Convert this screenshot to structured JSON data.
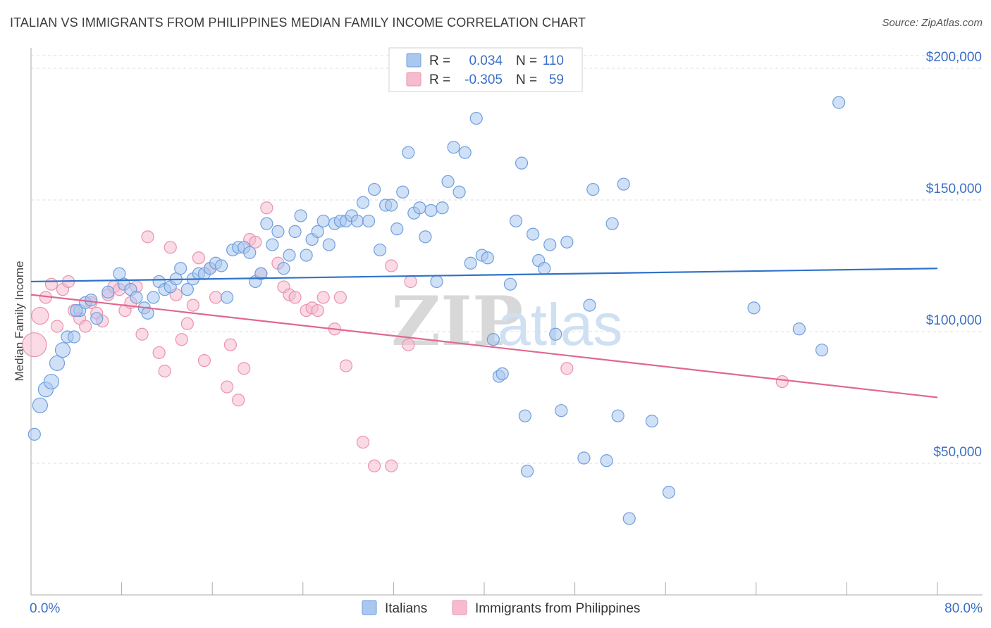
{
  "title": "ITALIAN VS IMMIGRANTS FROM PHILIPPINES MEDIAN FAMILY INCOME CORRELATION CHART",
  "source": "Source: ZipAtlas.com",
  "watermark": {
    "part1": "ZIP",
    "part2": "atlas"
  },
  "colors": {
    "italians_fill": "#a9c7ef",
    "italians_stroke": "#6f9fdc",
    "italians_line": "#2f72c9",
    "phil_fill": "#f6bccd",
    "phil_stroke": "#ea93ae",
    "phil_line": "#e0688f",
    "tick_text": "#3b6fc7",
    "grid": "#dcdcdc"
  },
  "legend": {
    "rows": [
      {
        "r_label": "R =",
        "r_value": "0.034",
        "n_label": "N =",
        "n_value": "110",
        "color_key": "italians"
      },
      {
        "r_label": "R =",
        "r_value": "-0.305",
        "n_label": "N =",
        "n_value": "59",
        "color_key": "phil"
      }
    ]
  },
  "bottom_legend": [
    "Italians",
    "Immigrants from Philippines"
  ],
  "chart_data": {
    "type": "scatter",
    "title": "ITALIAN VS IMMIGRANTS FROM PHILIPPINES MEDIAN FAMILY INCOME CORRELATION CHART",
    "xlabel": "",
    "ylabel": "Median Family Income",
    "xlim": [
      0,
      80
    ],
    "ylim": [
      0,
      210000
    ],
    "x_tick_labels": [
      {
        "value": 0,
        "label": "0.0%"
      },
      {
        "value": 80,
        "label": "80.0%"
      }
    ],
    "y_ticks": [
      {
        "value": 50000,
        "label": "$50,000"
      },
      {
        "value": 100000,
        "label": "$100,000"
      },
      {
        "value": 150000,
        "label": "$150,000"
      },
      {
        "value": 200000,
        "label": "$200,000"
      }
    ],
    "series": [
      {
        "name": "Italians",
        "r": 0.034,
        "n": 110,
        "trend": {
          "x0": 0,
          "y0": 119000,
          "x1": 80,
          "y1": 124000
        },
        "points": [
          [
            0.3,
            61000
          ],
          [
            0.8,
            72000
          ],
          [
            1.3,
            78000
          ],
          [
            1.8,
            81000
          ],
          [
            2.3,
            88000
          ],
          [
            2.8,
            93000
          ],
          [
            3.2,
            98000
          ],
          [
            3.8,
            98000
          ],
          [
            4.3,
            108000
          ],
          [
            4.8,
            111000
          ],
          [
            5.3,
            112000
          ],
          [
            5.8,
            105000
          ],
          [
            6.8,
            115000
          ],
          [
            7.8,
            122000
          ],
          [
            8.2,
            118000
          ],
          [
            8.8,
            116000
          ],
          [
            9.3,
            113000
          ],
          [
            10.0,
            109000
          ],
          [
            10.3,
            107000
          ],
          [
            10.8,
            113000
          ],
          [
            11.3,
            119000
          ],
          [
            11.8,
            116000
          ],
          [
            12.3,
            117000
          ],
          [
            12.8,
            120000
          ],
          [
            13.2,
            124000
          ],
          [
            13.8,
            116000
          ],
          [
            14.3,
            120000
          ],
          [
            14.8,
            122000
          ],
          [
            15.3,
            122000
          ],
          [
            15.8,
            124000
          ],
          [
            16.3,
            126000
          ],
          [
            16.8,
            125000
          ],
          [
            17.3,
            113000
          ],
          [
            17.8,
            131000
          ],
          [
            18.3,
            132000
          ],
          [
            18.8,
            132000
          ],
          [
            19.3,
            130000
          ],
          [
            19.8,
            119000
          ],
          [
            20.3,
            122000
          ],
          [
            20.8,
            141000
          ],
          [
            21.3,
            133000
          ],
          [
            21.8,
            138000
          ],
          [
            22.3,
            124000
          ],
          [
            22.8,
            129000
          ],
          [
            23.3,
            138000
          ],
          [
            23.8,
            144000
          ],
          [
            24.3,
            129000
          ],
          [
            24.8,
            135000
          ],
          [
            25.3,
            138000
          ],
          [
            25.8,
            142000
          ],
          [
            26.3,
            133000
          ],
          [
            26.8,
            141000
          ],
          [
            27.3,
            142000
          ],
          [
            27.8,
            142000
          ],
          [
            28.3,
            144000
          ],
          [
            28.8,
            142000
          ],
          [
            29.3,
            149000
          ],
          [
            29.8,
            142000
          ],
          [
            30.3,
            154000
          ],
          [
            30.8,
            131000
          ],
          [
            31.3,
            148000
          ],
          [
            31.8,
            148000
          ],
          [
            32.3,
            139000
          ],
          [
            32.8,
            153000
          ],
          [
            33.3,
            168000
          ],
          [
            33.8,
            145000
          ],
          [
            34.3,
            147000
          ],
          [
            34.8,
            136000
          ],
          [
            35.3,
            146000
          ],
          [
            35.8,
            119000
          ],
          [
            36.3,
            147000
          ],
          [
            36.8,
            157000
          ],
          [
            37.3,
            170000
          ],
          [
            37.8,
            153000
          ],
          [
            38.3,
            168000
          ],
          [
            38.8,
            126000
          ],
          [
            39.3,
            181000
          ],
          [
            39.8,
            129000
          ],
          [
            40.3,
            128000
          ],
          [
            40.8,
            97000
          ],
          [
            41.3,
            83000
          ],
          [
            41.6,
            84000
          ],
          [
            42.3,
            118000
          ],
          [
            42.8,
            142000
          ],
          [
            43.3,
            164000
          ],
          [
            43.6,
            68000
          ],
          [
            43.8,
            47000
          ],
          [
            44.3,
            137000
          ],
          [
            44.8,
            127000
          ],
          [
            45.3,
            124000
          ],
          [
            45.8,
            133000
          ],
          [
            46.3,
            99000
          ],
          [
            46.8,
            70000
          ],
          [
            47.3,
            134000
          ],
          [
            48.8,
            52000
          ],
          [
            49.3,
            110000
          ],
          [
            49.6,
            154000
          ],
          [
            50.8,
            51000
          ],
          [
            51.3,
            141000
          ],
          [
            51.8,
            68000
          ],
          [
            52.3,
            156000
          ],
          [
            52.8,
            29000
          ],
          [
            54.8,
            66000
          ],
          [
            56.3,
            39000
          ],
          [
            63.8,
            109000
          ],
          [
            67.8,
            101000
          ],
          [
            69.8,
            93000
          ],
          [
            71.3,
            187000
          ],
          [
            4.0,
            108000
          ]
        ]
      },
      {
        "name": "Immigrants from Philippines",
        "r": -0.305,
        "n": 59,
        "trend": {
          "x0": 0,
          "y0": 114000,
          "x1": 80,
          "y1": 75000
        },
        "points": [
          [
            0.3,
            95000
          ],
          [
            0.8,
            106000
          ],
          [
            1.3,
            113000
          ],
          [
            1.8,
            118000
          ],
          [
            2.3,
            102000
          ],
          [
            2.8,
            116000
          ],
          [
            3.3,
            119000
          ],
          [
            3.8,
            108000
          ],
          [
            4.3,
            105000
          ],
          [
            4.8,
            102000
          ],
          [
            5.3,
            111000
          ],
          [
            5.8,
            107000
          ],
          [
            6.3,
            104000
          ],
          [
            6.8,
            114000
          ],
          [
            7.3,
            117000
          ],
          [
            7.8,
            116000
          ],
          [
            8.3,
            108000
          ],
          [
            8.8,
            111000
          ],
          [
            9.3,
            117000
          ],
          [
            9.8,
            99000
          ],
          [
            10.3,
            136000
          ],
          [
            11.3,
            92000
          ],
          [
            11.8,
            85000
          ],
          [
            12.3,
            132000
          ],
          [
            12.8,
            114000
          ],
          [
            13.3,
            97000
          ],
          [
            13.8,
            103000
          ],
          [
            14.3,
            110000
          ],
          [
            14.8,
            128000
          ],
          [
            15.3,
            89000
          ],
          [
            15.8,
            124000
          ],
          [
            16.3,
            113000
          ],
          [
            17.3,
            79000
          ],
          [
            17.6,
            95000
          ],
          [
            18.3,
            74000
          ],
          [
            18.8,
            86000
          ],
          [
            19.3,
            135000
          ],
          [
            19.8,
            134000
          ],
          [
            20.3,
            122000
          ],
          [
            20.8,
            147000
          ],
          [
            21.8,
            126000
          ],
          [
            22.3,
            117000
          ],
          [
            22.8,
            114000
          ],
          [
            23.3,
            113000
          ],
          [
            24.3,
            108000
          ],
          [
            24.8,
            109000
          ],
          [
            25.3,
            108000
          ],
          [
            25.8,
            113000
          ],
          [
            26.8,
            101000
          ],
          [
            27.3,
            113000
          ],
          [
            27.8,
            87000
          ],
          [
            29.3,
            58000
          ],
          [
            30.3,
            49000
          ],
          [
            31.8,
            49000
          ],
          [
            31.8,
            125000
          ],
          [
            33.3,
            95000
          ],
          [
            33.5,
            119000
          ],
          [
            47.3,
            86000
          ],
          [
            66.3,
            81000
          ]
        ]
      }
    ]
  }
}
